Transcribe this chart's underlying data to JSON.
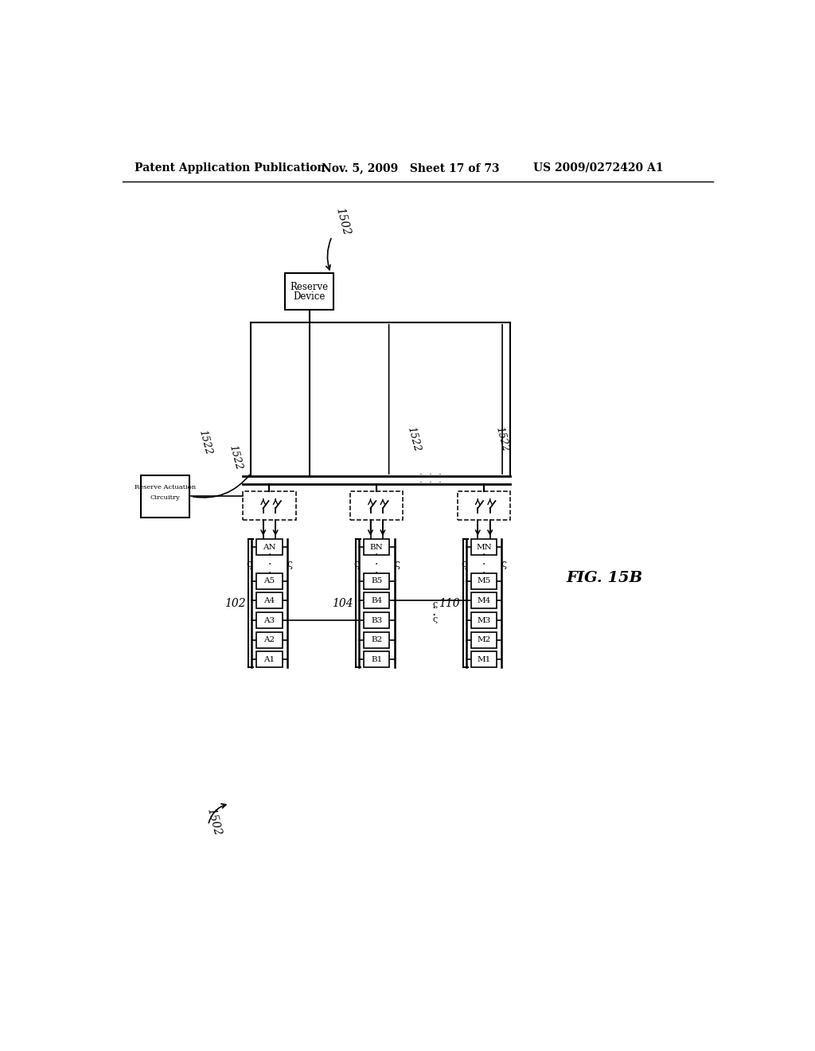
{
  "title_left": "Patent Application Publication",
  "title_mid": "Nov. 5, 2009   Sheet 17 of 73",
  "title_right": "US 2009/0272420 A1",
  "fig_label": "FIG. 15B",
  "background": "#ffffff",
  "col_A_cells": [
    "A1",
    "A2",
    "A3",
    "A4",
    "A5",
    "AN"
  ],
  "col_B_cells": [
    "B1",
    "B2",
    "B3",
    "B4",
    "B5",
    "BN"
  ],
  "col_M_cells": [
    "M1",
    "M2",
    "M3",
    "M4",
    "M5",
    "MN"
  ],
  "label_102": "102",
  "label_104": "104",
  "label_110": "110",
  "label_1502_top": "1502",
  "label_1502_bot": "1502",
  "label_1522_vals": [
    "1522",
    "1522",
    "1522",
    "1522"
  ]
}
